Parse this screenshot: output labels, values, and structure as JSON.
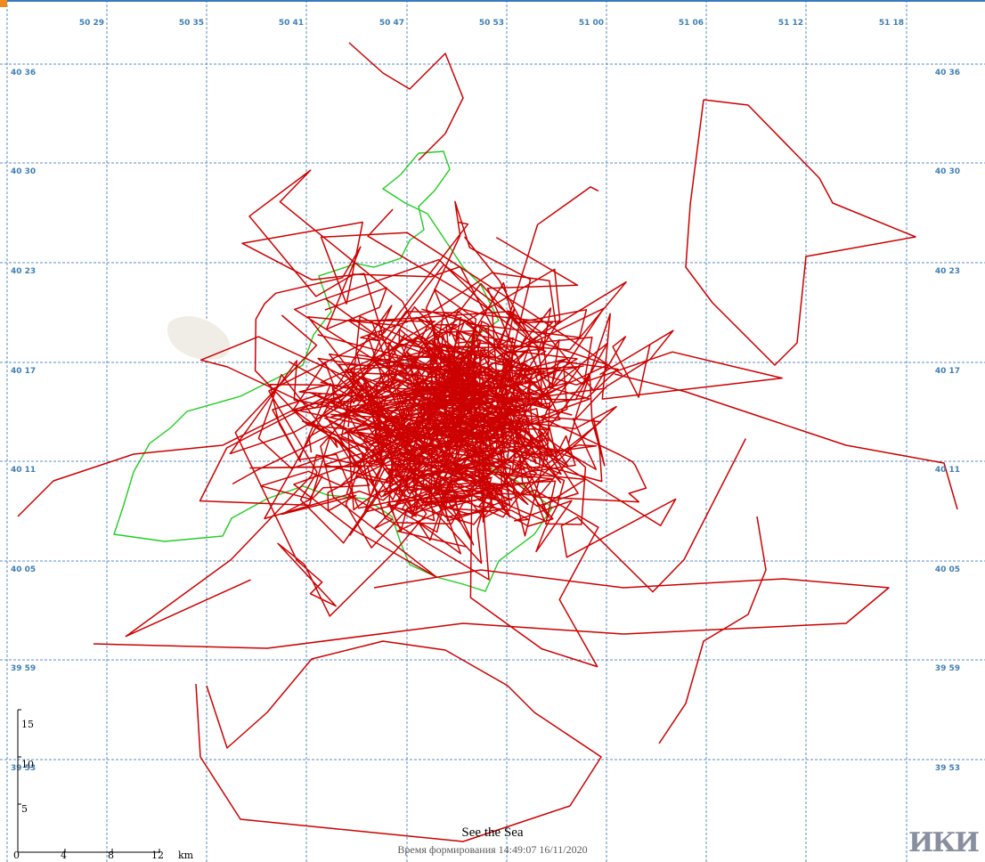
{
  "map": {
    "lon_labels": [
      "50 29",
      "50 35",
      "50 41",
      "50 47",
      "50 53",
      "51 00",
      "51 06",
      "51 12",
      "51 18"
    ],
    "lat_labels": [
      "40 36",
      "40 30",
      "40 23",
      "40 17",
      "40 11",
      "40 05",
      "39 59",
      "39 53"
    ],
    "colors": {
      "grid": "#5b8fc4",
      "grid_label": "#3f7fb5",
      "track_red": "#cc0000",
      "track_green": "#22cc22",
      "land": "#efede5"
    }
  },
  "scale_bar": {
    "vertical_ticks": [
      "15",
      "10",
      "5"
    ],
    "horizontal_ticks": [
      "0",
      "4",
      "8",
      "12"
    ],
    "unit": "km"
  },
  "footer": {
    "title": "See the Sea",
    "timestamp": "Время формирования 14:49:07 16/11/2020"
  },
  "logo": {
    "text": "ИКИ"
  }
}
